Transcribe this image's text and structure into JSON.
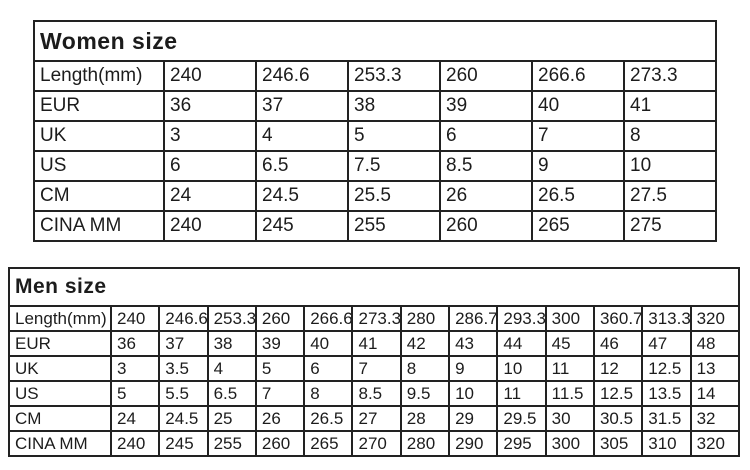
{
  "page": {
    "background_color": "#ffffff",
    "text_color": "#1c1c1c",
    "border_color": "#222222"
  },
  "women_table": {
    "title": "Women size",
    "rows": [
      {
        "label": "Length(mm)",
        "values": [
          "240",
          "246.6",
          "253.3",
          "260",
          "266.6",
          "273.3"
        ]
      },
      {
        "label": "EUR",
        "values": [
          "36",
          "37",
          "38",
          "39",
          "40",
          "41"
        ]
      },
      {
        "label": "UK",
        "values": [
          "3",
          "4",
          "5",
          "6",
          "7",
          "8"
        ]
      },
      {
        "label": "US",
        "values": [
          "6",
          "6.5",
          "7.5",
          "8.5",
          "9",
          "10"
        ]
      },
      {
        "label": "CM",
        "values": [
          "24",
          "24.5",
          "25.5",
          "26",
          "26.5",
          "27.5"
        ]
      },
      {
        "label": "CINA MM",
        "values": [
          "240",
          "245",
          "255",
          "260",
          "265",
          "275"
        ]
      }
    ]
  },
  "men_table": {
    "title": "Men size",
    "rows": [
      {
        "label": "Length(mm)",
        "values": [
          "240",
          "246.6",
          "253.3",
          "260",
          "266.6",
          "273.3",
          "280",
          "286.7",
          "293.3",
          "300",
          "360.7",
          "313.3",
          "320"
        ]
      },
      {
        "label": "EUR",
        "values": [
          "36",
          "37",
          "38",
          "39",
          "40",
          "41",
          "42",
          "43",
          "44",
          "45",
          "46",
          "47",
          "48"
        ]
      },
      {
        "label": "UK",
        "values": [
          "3",
          "3.5",
          "4",
          "5",
          "6",
          "7",
          "8",
          "9",
          "10",
          "11",
          "12",
          "12.5",
          "13"
        ]
      },
      {
        "label": "US",
        "values": [
          "5",
          "5.5",
          "6.5",
          "7",
          "8",
          "8.5",
          "9.5",
          "10",
          "11",
          "11.5",
          "12.5",
          "13.5",
          "14"
        ]
      },
      {
        "label": "CM",
        "values": [
          "24",
          "24.5",
          "25",
          "26",
          "26.5",
          "27",
          "28",
          "29",
          "29.5",
          "30",
          "30.5",
          "31.5",
          "32"
        ]
      },
      {
        "label": "CINA MM",
        "values": [
          "240",
          "245",
          "255",
          "260",
          "265",
          "270",
          "280",
          "290",
          "295",
          "300",
          "305",
          "310",
          "320"
        ]
      }
    ]
  }
}
